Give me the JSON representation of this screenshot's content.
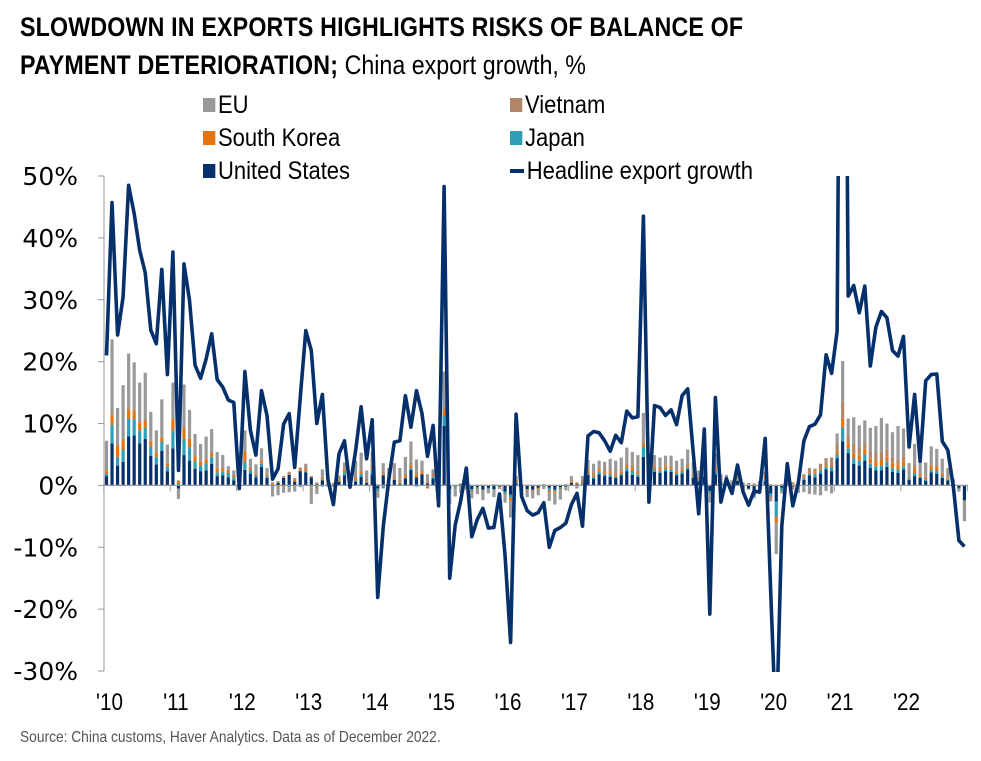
{
  "header": {
    "title_bold_line1": "SLOWDOWN IN EXPORTS HIGHLIGHTS RISKS OF BALANCE OF",
    "title_bold_line2": "PAYMENT DETERIORATION;",
    "title_sub": " China export growth, %"
  },
  "footer": {
    "source": "Source: China customs, Haver Analytics. Data as of December 2022."
  },
  "colors": {
    "EU": "#999999",
    "Vietnam": "#b0876a",
    "South Korea": "#e3740f",
    "Japan": "#2f9eb5",
    "United States": "#06306b",
    "Headline export growth": "#06306b",
    "axis": "#999999"
  },
  "chart_data": {
    "type": "bar",
    "subtype": "stacked bar + line",
    "title": "Slowdown in exports highlights risks of balance of payment deterioration; China export growth, %",
    "xlabel": "",
    "ylabel": "",
    "ylim": [
      -30,
      50
    ],
    "yticks": [
      50,
      40,
      30,
      20,
      10,
      0,
      -10,
      -20,
      -30
    ],
    "ytick_labels": [
      "50%",
      "40%",
      "30%",
      "20%",
      "10%",
      "0%",
      "-10%",
      "-20%",
      "-30%"
    ],
    "xticks": [
      "'10",
      "'11",
      "'12",
      "'13",
      "'14",
      "'15",
      "'16",
      "'17",
      "'18",
      "'19",
      "'20",
      "'21",
      "'22"
    ],
    "x_start": "2010-01",
    "frequency": "monthly",
    "grid": false,
    "legend_position": "top",
    "legend": [
      "EU",
      "Vietnam",
      "South Korea",
      "Japan",
      "United States",
      "Headline export growth"
    ],
    "line": {
      "name": "Headline export growth",
      "values": [
        21,
        45.7,
        24.3,
        30.5,
        48.5,
        43.9,
        38,
        34.4,
        25.1,
        22.9,
        34.9,
        17.9,
        37.7,
        2.4,
        35.8,
        29.9,
        19.4,
        17.3,
        20.4,
        24.5,
        17.1,
        15.9,
        13.8,
        13.4,
        -0.5,
        18.4,
        8.9,
        4.9,
        15.3,
        11.3,
        1,
        2.7,
        9.9,
        11.6,
        2.9,
        14.1,
        25,
        21.8,
        10,
        14.7,
        1,
        -3.1,
        5.1,
        7.2,
        -0.3,
        5.6,
        12.7,
        4.3,
        10.6,
        -18.1,
        -6.6,
        0.9,
        7,
        7.2,
        14.5,
        9.4,
        15.3,
        11.6,
        4.7,
        9.7,
        -3.3,
        48.3,
        -15,
        -6.4,
        -2.5,
        2.8,
        -8.3,
        -5.5,
        -3.7,
        -6.9,
        -6.8,
        -1.4,
        -11.2,
        -25.4,
        11.5,
        -1.8,
        -4.1,
        -4.8,
        -4.4,
        -2.8,
        -10,
        -7.3,
        -6.8,
        -6.1,
        -3.1,
        -1.3,
        -6.6,
        8,
        8.7,
        8.5,
        7.2,
        5.5,
        8.1,
        6.9,
        12,
        10.9,
        11.1,
        43.5,
        -2.7,
        12.9,
        12.6,
        11.3,
        12.2,
        9.8,
        14.5,
        15.6,
        5.4,
        -4.6,
        9.1,
        -20.8,
        14.2,
        -2.7,
        1.1,
        -1.3,
        3.3,
        -1,
        -3.2,
        -0.9,
        -1.1,
        7.6,
        -17.2,
        -40.6,
        -6.6,
        3.5,
        -3.3,
        0.5,
        7.2,
        9.5,
        9.9,
        11.4,
        21.1,
        18.1,
        24.9,
        154.9,
        30.6,
        32.3,
        27.9,
        32.2,
        19.3,
        25.6,
        28.1,
        27.1,
        21.8,
        20.9,
        24.1,
        6.2,
        14.7,
        3.9,
        16.9,
        17.9,
        18,
        7.1,
        5.7,
        -0.3,
        -8.9,
        -9.9
      ]
    },
    "series": [
      {
        "name": "United States",
        "values": [
          1.5,
          6.8,
          3.2,
          3.8,
          7.9,
          8.1,
          6.8,
          7.5,
          4.8,
          3.4,
          5.6,
          2.3,
          6,
          -0.5,
          4.9,
          4,
          2.7,
          2.3,
          2.4,
          3.5,
          1.5,
          1.6,
          1.3,
          0.8,
          -0.2,
          2.5,
          1.9,
          1.3,
          3,
          1.2,
          0.1,
          0.4,
          1.2,
          1.7,
          0.6,
          2.3,
          2.1,
          1.3,
          0.2,
          0.8,
          0.1,
          0.1,
          0.6,
          1.6,
          0.4,
          0.6,
          1.4,
          0.4,
          1.8,
          -0.5,
          1.6,
          0.4,
          0.9,
          0.2,
          1.1,
          2.5,
          1.3,
          1.8,
          0.3,
          1.1,
          -0.5,
          9.6,
          -0.6,
          -0.1,
          0.2,
          0.3,
          -0.6,
          -0.3,
          -0.7,
          -0.4,
          -0.6,
          -0.2,
          -1,
          -1.5,
          0.3,
          -0.9,
          -0.6,
          -0.7,
          -0.4,
          -0.1,
          -0.4,
          -0.7,
          -0.3,
          -0.2,
          0.4,
          0.2,
          0.1,
          1.7,
          1.1,
          1.8,
          1.5,
          1.4,
          1.2,
          1.6,
          2.3,
          1.7,
          1.4,
          4.6,
          -0.5,
          2.2,
          2,
          2.3,
          2.2,
          1.6,
          1.9,
          2.6,
          1.2,
          0.6,
          1.4,
          -0.9,
          1.8,
          0.4,
          0.5,
          -0.4,
          0.7,
          -0.5,
          -0.5,
          -1.6,
          -0.3,
          0.6,
          -1.3,
          -2.6,
          -0.4,
          0.1,
          -0.2,
          0.6,
          0.9,
          1.6,
          1.3,
          1.9,
          2.6,
          2.3,
          4.4,
          7.1,
          5.2,
          3.5,
          3.2,
          4,
          2.8,
          2.4,
          2.4,
          3,
          2.2,
          2,
          2.6,
          0.9,
          1.5,
          1.2,
          0.7,
          2.1,
          1.9,
          1.2,
          0.8,
          -0.4,
          -0.4,
          -2.4
        ]
      },
      {
        "name": "Japan",
        "values": [
          0.4,
          3,
          1.4,
          2,
          2.9,
          2.6,
          2.1,
          1.8,
          1.5,
          1.2,
          1.5,
          0.8,
          2.9,
          0.3,
          2.6,
          2.2,
          1.2,
          0.9,
          1.2,
          1.1,
          0.6,
          0.6,
          0.7,
          0.5,
          0.9,
          1.3,
          0.6,
          0.4,
          0.5,
          0.3,
          -0.2,
          0.1,
          -0.1,
          -0.3,
          -0.1,
          0,
          0.2,
          -0.2,
          -0.3,
          -0.2,
          -0.2,
          0.1,
          0.1,
          0.5,
          0.1,
          0.2,
          0.5,
          0.2,
          0.7,
          -0.4,
          -0.5,
          0.2,
          0.1,
          0.2,
          0.1,
          0.3,
          -0.2,
          0,
          -0.2,
          0.3,
          -0.1,
          1.6,
          -0.7,
          -0.3,
          -0.2,
          -0.1,
          -0.3,
          -0.2,
          -0.1,
          -0.2,
          -0.2,
          0,
          -0.4,
          -0.5,
          0.2,
          -0.1,
          -0.1,
          -0.1,
          0,
          -0.1,
          -0.4,
          -0.2,
          -0.3,
          -0.1,
          0,
          0,
          0.2,
          0.3,
          0.3,
          0.4,
          0.3,
          0.4,
          0.2,
          0.3,
          0.5,
          0.7,
          0.4,
          1.6,
          -0.4,
          0.4,
          0.3,
          0.4,
          0.4,
          0.3,
          0.4,
          0.3,
          0.2,
          0.2,
          0.5,
          -0.4,
          0.5,
          0.3,
          0.2,
          0,
          0.1,
          -0.2,
          -0.1,
          -0.3,
          -0.2,
          0.3,
          -0.5,
          -2.5,
          -0.5,
          0.1,
          0.1,
          -0.2,
          0.2,
          0.3,
          0.5,
          0.5,
          0.4,
          0.7,
          0.6,
          2.2,
          0.8,
          0.9,
          0.8,
          1,
          0.7,
          0.7,
          0.8,
          0.9,
          0.6,
          0.6,
          0.5,
          0.2,
          0.5,
          0.2,
          0.2,
          0.4,
          0.5,
          0.3,
          0.1,
          -0.1,
          -0.2,
          -0.2
        ]
      },
      {
        "name": "South Korea",
        "values": [
          0.4,
          1.5,
          1.8,
          1.5,
          1.4,
          1.3,
          1.3,
          1.1,
          0.8,
          0.6,
          0.6,
          0.4,
          1.8,
          0.4,
          1.7,
          1.3,
          0.8,
          0.6,
          0.6,
          0.6,
          0.6,
          0.5,
          0.4,
          0.3,
          0.9,
          1.6,
          0.3,
          0.2,
          0.4,
          0.2,
          0.2,
          -0.2,
          -0.2,
          0,
          0.3,
          0.2,
          0.3,
          -0.1,
          -0.2,
          0.2,
          0.1,
          0,
          0.3,
          0.3,
          -0.1,
          0.3,
          0.3,
          0.2,
          0.4,
          -0.1,
          0.3,
          0,
          0.2,
          0.1,
          0.3,
          0.4,
          0.5,
          0.3,
          -0.3,
          0.2,
          0.1,
          0.9,
          -0.1,
          -0.1,
          -0.1,
          0.1,
          -0.2,
          -0.1,
          -0.1,
          -0.1,
          0.1,
          -0.1,
          -0.2,
          -0.5,
          0.4,
          -0.1,
          -0.2,
          -0.2,
          -0.2,
          0,
          -0.3,
          -0.3,
          -0.2,
          0,
          0.2,
          0.1,
          0.3,
          0.4,
          0.3,
          0.4,
          0.3,
          0.3,
          0.3,
          0.3,
          0.4,
          0.4,
          0.2,
          0.5,
          -0.1,
          0.4,
          0.3,
          0.3,
          0.3,
          0.3,
          0.3,
          0.3,
          0.2,
          0.2,
          0.3,
          -0.2,
          0.4,
          0.1,
          0.2,
          0.1,
          0.1,
          -0.1,
          -0.1,
          0,
          0,
          0.2,
          -0.2,
          -1,
          0,
          0.1,
          0.1,
          0.1,
          0.1,
          0.2,
          0.3,
          0.2,
          0.3,
          0.3,
          0.5,
          1.5,
          0.8,
          0.8,
          0.8,
          0.9,
          0.8,
          0.8,
          0.9,
          0.8,
          0.8,
          0.8,
          0.8,
          0.1,
          0.8,
          0.4,
          0.3,
          0.6,
          0.6,
          0.4,
          0.2,
          0.1,
          -0.1,
          -0.2
        ]
      },
      {
        "name": "Vietnam",
        "values": [
          0.2,
          0.3,
          0.3,
          0.2,
          0.3,
          0.3,
          0.2,
          0.3,
          0.2,
          0.2,
          0.2,
          0.1,
          0.3,
          0.1,
          0.3,
          0.2,
          0.3,
          0.2,
          0.2,
          0.2,
          0.2,
          0.3,
          0.2,
          0.1,
          0.2,
          0.3,
          0.2,
          0.2,
          0.3,
          0.2,
          0.2,
          0.2,
          0.3,
          0.5,
          0.3,
          0.4,
          0.5,
          0.2,
          0.3,
          0.4,
          0.3,
          0.2,
          0.3,
          0.3,
          0.3,
          0.4,
          0.4,
          0.3,
          0.5,
          0.2,
          0.3,
          0.4,
          0.4,
          0.4,
          0.4,
          0.5,
          0.5,
          0.4,
          0.4,
          0.4,
          0.3,
          0.6,
          -0.1,
          0.1,
          0.1,
          0.1,
          0,
          0.1,
          0.1,
          0,
          0.1,
          0.1,
          0.1,
          -0.2,
          0.2,
          0.1,
          0.1,
          0.1,
          0.1,
          0.2,
          0.1,
          0.1,
          0.1,
          0.2,
          0.3,
          0.2,
          0.3,
          0.4,
          0.4,
          0.4,
          0.4,
          0.5,
          0.4,
          0.5,
          0.5,
          0.5,
          0.4,
          0.4,
          0.1,
          0.4,
          0.4,
          0.4,
          0.3,
          0.4,
          0.3,
          0.4,
          0.3,
          0.4,
          0.4,
          0.1,
          0.5,
          0.3,
          0.3,
          0.3,
          0.3,
          0.3,
          0.2,
          0.3,
          0.3,
          0.4,
          0.2,
          -0.1,
          0.2,
          0.3,
          0.3,
          0.4,
          0.6,
          0.7,
          0.6,
          0.9,
          1.1,
          1.2,
          1.2,
          2.7,
          1.4,
          1.6,
          1.5,
          1.1,
          1.2,
          1.5,
          1.3,
          1.2,
          1,
          0.8,
          0.8,
          0.2,
          0.5,
          0.2,
          0.2,
          0.3,
          0.3,
          0.2,
          0.2,
          0.1,
          0.1,
          0.1
        ]
      },
      {
        "name": "EU",
        "values": [
          4.7,
          12,
          5.8,
          8.7,
          8.8,
          7.6,
          6.2,
          7.5,
          4.6,
          3.5,
          6,
          3,
          5.6,
          -1.7,
          6.8,
          4.5,
          3.3,
          2.7,
          3.5,
          3.7,
          2.5,
          1.9,
          0.5,
          0.7,
          1.7,
          3.2,
          1.3,
          1.3,
          1.8,
          0.9,
          -1.6,
          -1.4,
          -0.9,
          -0.8,
          -0.9,
          -0.3,
          0.4,
          -2.7,
          -0.9,
          1.2,
          0.2,
          -0.3,
          0.3,
          1,
          0.5,
          2.5,
          2.7,
          1.3,
          2,
          -1,
          1.4,
          1.8,
          2,
          1.9,
          2.7,
          3.4,
          1.9,
          1.5,
          1.1,
          0.6,
          -0.6,
          5.7,
          -1.5,
          -1.3,
          -0.9,
          -0.6,
          -1,
          -0.8,
          -1.5,
          -0.6,
          -1.1,
          -0.3,
          -1.2,
          -2.5,
          0.4,
          -0.8,
          -1,
          -1.1,
          -1,
          -0.4,
          -1.4,
          -1.9,
          -1.5,
          -0.5,
          0.6,
          -0.5,
          0.6,
          1.3,
          1.4,
          1,
          1.3,
          1.7,
          1.9,
          1.8,
          2.4,
          2.1,
          2.5,
          4.6,
          -0.3,
          1.5,
          1.5,
          1.4,
          1.6,
          1.4,
          1.4,
          2.2,
          1.8,
          1,
          1.5,
          -1.3,
          2,
          0.7,
          0.5,
          0.4,
          0.8,
          0.2,
          0.2,
          -0.2,
          0.4,
          0.7,
          -0.6,
          -4.9,
          -0.4,
          0.2,
          -0.5,
          -1,
          -1.1,
          -1.4,
          -1.5,
          -1.6,
          -0.9,
          -1.3,
          1.7,
          6.6,
          2.6,
          4.2,
          3.4,
          3.5,
          3.8,
          4.2,
          5.5,
          4.1,
          4,
          5.4,
          4.5,
          2.2,
          3.4,
          1.8,
          2.3,
          2.9,
          2.6,
          2.2,
          1.5,
          0.8,
          -0.3,
          -3
        ]
      }
    ]
  }
}
